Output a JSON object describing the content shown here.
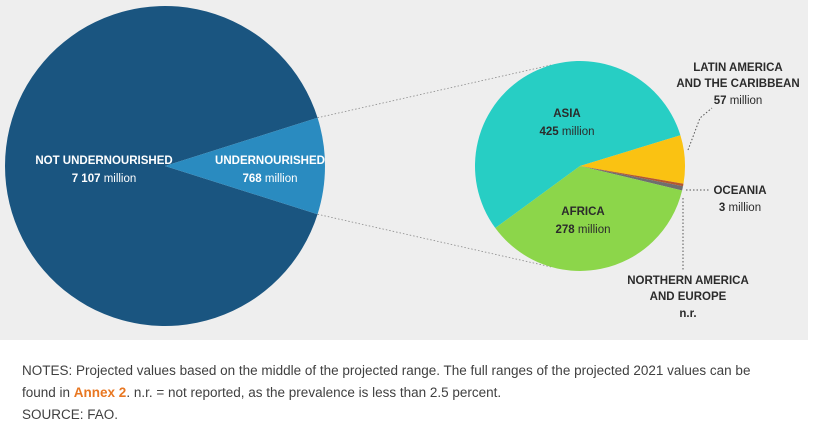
{
  "colors": {
    "panel_bg": "#eeeeee",
    "big_pie": "#1a5580",
    "slice_highlight": "#2a8bc0",
    "asia": "#27cec4",
    "africa": "#8cd64a",
    "latin": "#fac212",
    "oceania": "#b5572f",
    "n_america": "#6e6e6e",
    "annex_link": "#e87722",
    "label_dark": "#2b2b2b"
  },
  "chart_data": [
    {
      "type": "pie",
      "title": "",
      "unit": "million",
      "slices": [
        {
          "name": "NOT UNDERNOURISHED",
          "value": 7107,
          "value_label": "7 107",
          "unit": "million"
        },
        {
          "name": "UNDERNOURISHED",
          "value": 768,
          "value_label": "768",
          "unit": "million"
        }
      ]
    },
    {
      "type": "pie",
      "title": "",
      "unit": "million",
      "slices": [
        {
          "name": "ASIA",
          "value": 425,
          "value_label": "425",
          "unit": "million"
        },
        {
          "name": "LATIN AMERICA",
          "name_line2": "AND THE CARIBBEAN",
          "value": 57,
          "value_label": "57",
          "unit": "million"
        },
        {
          "name": "OCEANIA",
          "value": 3,
          "value_label": "3",
          "unit": "million"
        },
        {
          "name": "NORTHERN AMERICA",
          "name_line2": "AND EUROPE",
          "value": 5,
          "value_label": "n.r.",
          "unit": ""
        },
        {
          "name": "AFRICA",
          "value": 278,
          "value_label": "278",
          "unit": "million"
        }
      ]
    }
  ],
  "notes": {
    "line1": "NOTES: Projected values based on the middle of the projected range. The full ranges of the projected 2021 values can be",
    "line2_before": "found in ",
    "annex_link": "Annex 2",
    "line2_after": ". n.r. = not reported, as the prevalence is less than 2.5 percent.",
    "source": "SOURCE: FAO."
  }
}
